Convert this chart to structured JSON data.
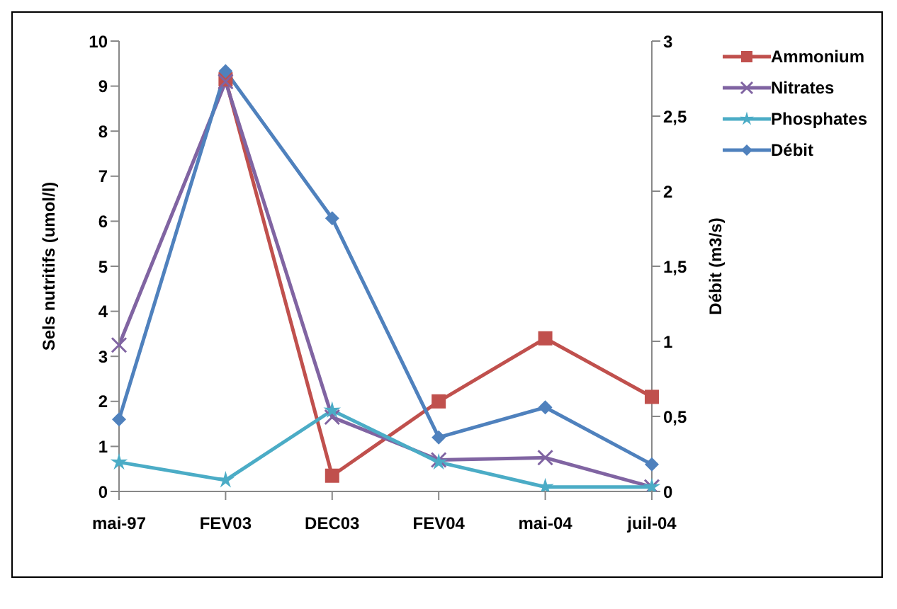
{
  "chart_data": {
    "type": "line",
    "categories": [
      "mai-97",
      "FEV03",
      "DEC03",
      "FEV04",
      "mai-04",
      "juil-04"
    ],
    "ylabel": "Sels nutritifs (umol/l)",
    "y2label": "Débit (m3/s)",
    "ylim": [
      0,
      10
    ],
    "yticks": [
      0,
      1,
      2,
      3,
      4,
      5,
      6,
      7,
      8,
      9,
      10
    ],
    "y2lim": [
      0,
      3
    ],
    "y2ticks": [
      0,
      {
        "value": 0.5,
        "label": "0,5"
      },
      1,
      {
        "value": 1.5,
        "label": "1,5"
      },
      2,
      {
        "value": 2.5,
        "label": "2,5"
      },
      3
    ],
    "legend": "top right",
    "grid": false,
    "series": [
      {
        "name": "Ammonium",
        "color": "#c0504d",
        "marker": "square",
        "values": [
          null,
          9.15,
          0.35,
          2.0,
          3.4,
          2.1
        ]
      },
      {
        "name": "Nitrates",
        "color": "#8064a2",
        "marker": "cross",
        "values": [
          3.25,
          9.1,
          1.65,
          0.7,
          0.75,
          0.1
        ]
      },
      {
        "name": "Phosphates",
        "color": "#4bacc6",
        "marker": "star",
        "values": [
          0.65,
          0.25,
          1.8,
          0.65,
          0.1,
          0.1
        ]
      },
      {
        "name": "Débit",
        "color": "#4f81bd",
        "marker": "diamond",
        "axis": "y2",
        "values": [
          0.48,
          2.8,
          1.82,
          0.36,
          0.56,
          0.18
        ]
      }
    ]
  }
}
